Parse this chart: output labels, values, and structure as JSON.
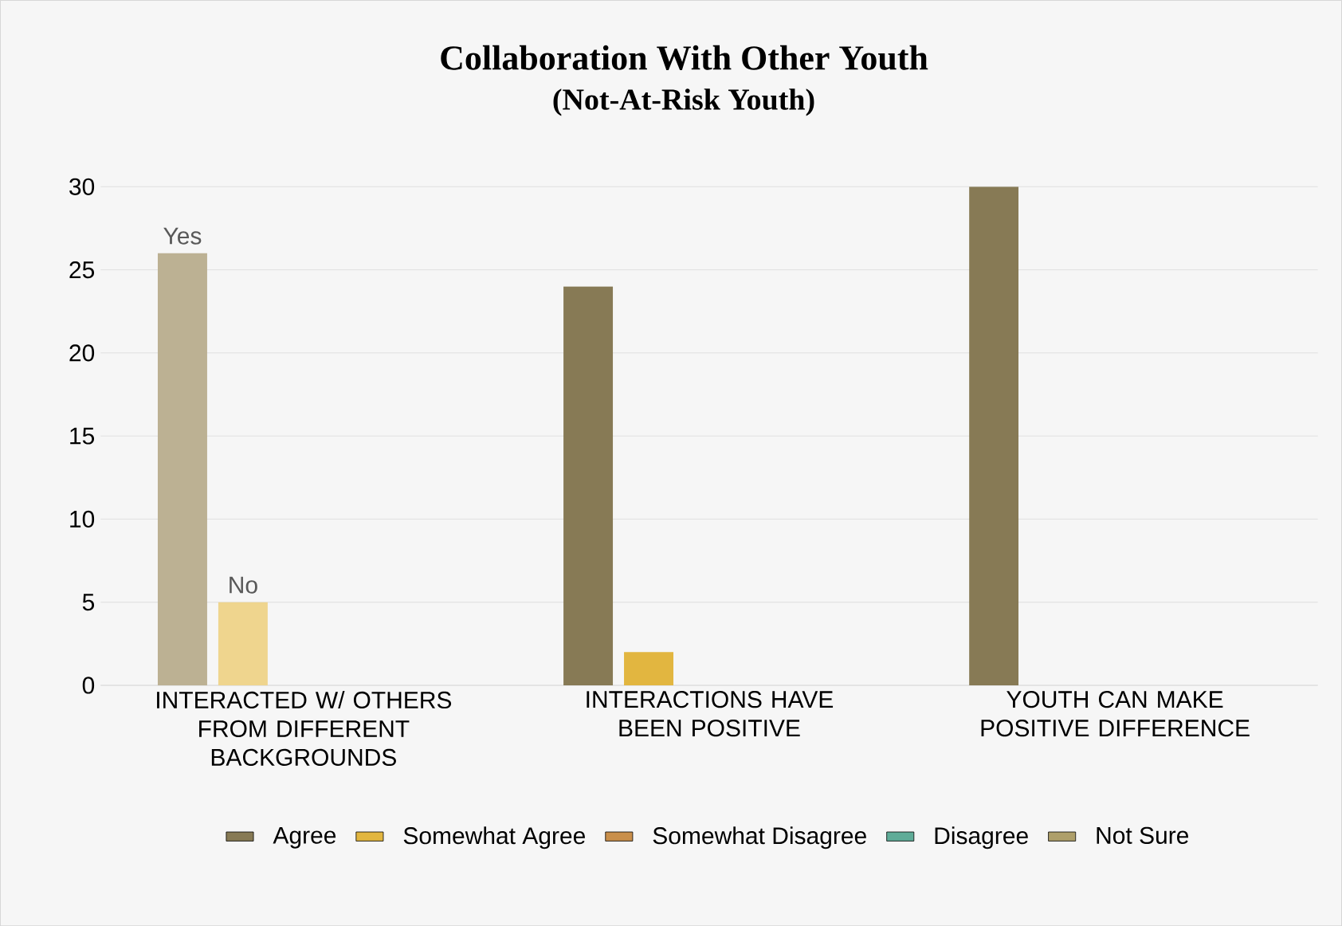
{
  "chart_data": {
    "type": "bar",
    "title": "Collaboration With Other Youth",
    "subtitle": "(Not-At-Risk Youth)",
    "categories": [
      "INTERACTED W/ OTHERS FROM DIFFERENT BACKGROUNDS",
      "INTERACTIONS HAVE BEEN POSITIVE",
      "YOUTH CAN MAKE POSITIVE DIFFERENCE"
    ],
    "series": [
      {
        "name": "Agree",
        "color": "#877a55",
        "colors": [
          "#bcb193",
          "#877a55",
          "#877a55"
        ],
        "values": [
          26,
          24,
          30
        ],
        "value_labels": [
          "Yes",
          null,
          null
        ]
      },
      {
        "name": "Somewhat Agree",
        "color": "#e2b640",
        "colors": [
          "#efd58e",
          "#e2b640",
          "#e2b640"
        ],
        "values": [
          5,
          2,
          null
        ],
        "value_labels": [
          "No",
          null,
          null
        ]
      },
      {
        "name": "Somewhat Disagree",
        "color": "#c98f4b",
        "values": [
          null,
          null,
          null
        ]
      },
      {
        "name": "Disagree",
        "color": "#5fac98",
        "values": [
          null,
          null,
          null
        ]
      },
      {
        "name": "Not Sure",
        "color": "#ae9f6a",
        "values": [
          null,
          null,
          null
        ]
      }
    ],
    "ylim": [
      0,
      30
    ],
    "yticks": [
      0,
      5,
      10,
      15,
      20,
      25,
      30
    ],
    "grid": "y",
    "legend": "bottom"
  }
}
